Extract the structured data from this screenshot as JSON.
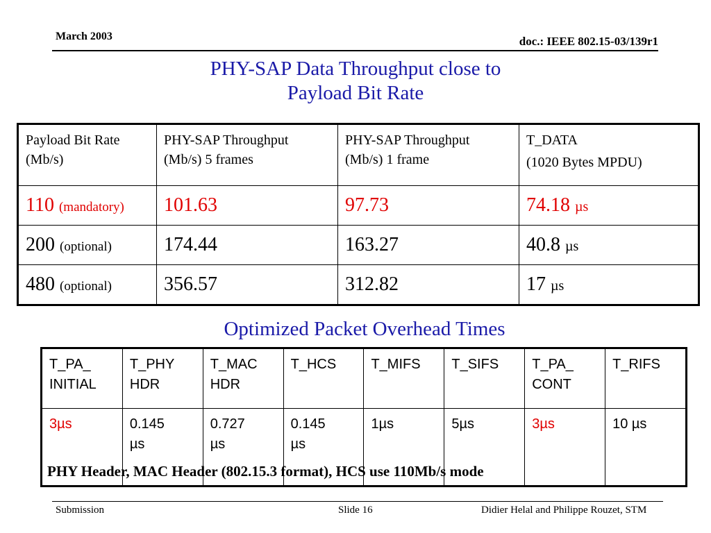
{
  "header": {
    "date": "March 2003",
    "doc": "doc.: IEEE 802.15-03/139r1"
  },
  "title": {
    "line1": "PHY-SAP Data Throughput close to",
    "line2": "Payload Bit Rate"
  },
  "throughput_table": {
    "headers": [
      {
        "line1": "Payload Bit Rate",
        "line2": "(Mb/s)"
      },
      {
        "line1": "PHY-SAP Throughput",
        "line2": "(Mb/s) 5 frames"
      },
      {
        "line1": "PHY-SAP Throughput",
        "line2": "(Mb/s) 1 frame"
      },
      {
        "line1": "T_DATA",
        "line2": "(1020 Bytes MPDU)"
      }
    ],
    "rows": [
      {
        "rate": "110",
        "rate_note": "(mandatory)",
        "five": "101.63",
        "one": "97.73",
        "tdata": "74.18",
        "unit": "µs"
      },
      {
        "rate": "200",
        "rate_note": "(optional)",
        "five": "174.44",
        "one": "163.27",
        "tdata": "40.8",
        "unit": "µs"
      },
      {
        "rate": "480",
        "rate_note": "(optional)",
        "five": "356.57",
        "one": "312.82",
        "tdata": "17",
        "unit": "µs"
      }
    ],
    "highlight_color": "#e00000"
  },
  "subtitle": "Optimized Packet Overhead Times",
  "overhead_table": {
    "headers": [
      {
        "line1": "T_PA_",
        "line2": "INITIAL"
      },
      {
        "line1": "T_PHY",
        "line2": "HDR"
      },
      {
        "line1": "T_MAC",
        "line2": "HDR"
      },
      {
        "line1": "T_HCS",
        "line2": ""
      },
      {
        "line1": "T_MIFS",
        "line2": ""
      },
      {
        "line1": "T_SIFS",
        "line2": ""
      },
      {
        "line1": "T_PA_",
        "line2": "CONT"
      },
      {
        "line1": "T_RIFS",
        "line2": ""
      }
    ],
    "values": [
      {
        "line1": "3µs",
        "line2": ""
      },
      {
        "line1": "0.145",
        "line2": "µs"
      },
      {
        "line1": "0.727",
        "line2": "µs"
      },
      {
        "line1": "0.145",
        "line2": "µs"
      },
      {
        "line1": "1µs",
        "line2": ""
      },
      {
        "line1": "5µs",
        "line2": ""
      },
      {
        "line1": "3µs",
        "line2": ""
      },
      {
        "line1": "10 µs",
        "line2": ""
      }
    ]
  },
  "note": "PHY Header, MAC Header (802.15.3 format), HCS use 110Mb/s mode",
  "footer": {
    "left": "Submission",
    "slide": "Slide 16",
    "authors": "Didier Helal and Philippe Rouzet, STM"
  },
  "title_color": "#1a1aa8"
}
